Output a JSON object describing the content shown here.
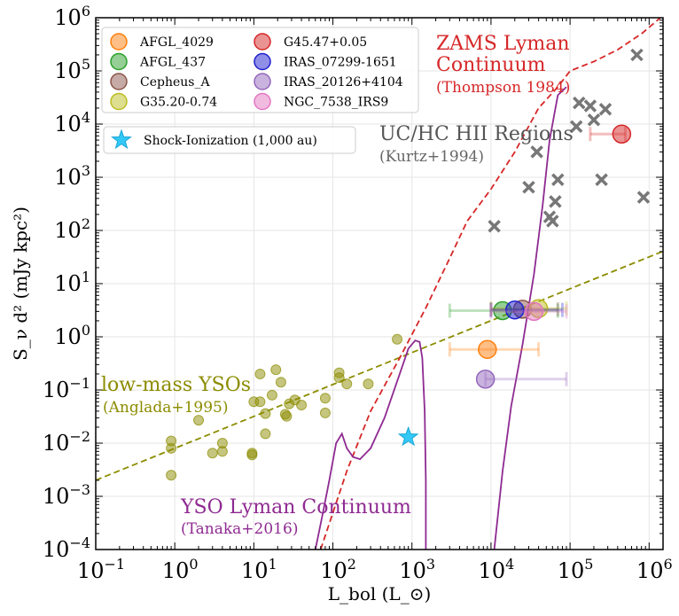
{
  "chart_data": {
    "type": "scatter",
    "x_scale": "log",
    "y_scale": "log",
    "xlim": [
      0.1,
      1500000
    ],
    "ylim": [
      0.0001,
      1000000
    ],
    "xlabel": "L_bol (L_⊙)",
    "ylabel": "S_ν d² (mJy kpc²)",
    "x_ticks": [
      0.1,
      1,
      10,
      100,
      1000,
      10000,
      100000,
      1000000
    ],
    "y_ticks": [
      0.0001,
      0.001,
      0.01,
      0.1,
      1,
      10,
      100,
      1000,
      10000,
      100000,
      1000000
    ],
    "grid": true,
    "legend_position": "top-left",
    "legend": {
      "sources": [
        {
          "name": "AFGL_4029",
          "color": "#ff7f0e"
        },
        {
          "name": "G45.47+0.05",
          "color": "#d62728"
        },
        {
          "name": "AFGL_437",
          "color": "#2ca02c"
        },
        {
          "name": "IRAS_07299-1651",
          "color": "#1f1fcf"
        },
        {
          "name": "Cepheus_A",
          "color": "#8c564b"
        },
        {
          "name": "IRAS_20126+4104",
          "color": "#9467bd"
        },
        {
          "name": "G35.20-0.74",
          "color": "#bcbd22"
        },
        {
          "name": "NGC_7538_IRS9",
          "color": "#e377c2"
        }
      ],
      "shock_label": "Shock-Ionization (1,000 au)"
    },
    "annotations": {
      "zams_title": "ZAMS Lyman",
      "zams_title2": "Continuum",
      "zams_ref": "(Thompson 1984)",
      "hii_title": "UC/HC HII Regions",
      "hii_ref": "(Kurtz+1994)",
      "lowmass_title": "low-mass YSOs",
      "lowmass_ref": "(Anglada+1995)",
      "yso_title": "YSO Lyman Continuum",
      "yso_ref": "(Tanaka+2016)"
    },
    "colors": {
      "zams": "#d62728",
      "hii": "#555555",
      "lowmass": "#8c8c00",
      "yso": "#8e2a91",
      "shock": "#33c8f5"
    },
    "source_points": [
      {
        "name": "AFGL_4029",
        "L": 9000,
        "S": 0.58,
        "Lerr": [
          3000,
          40000
        ]
      },
      {
        "name": "AFGL_437",
        "L": 14000,
        "S": 3.1,
        "Lerr": [
          3000,
          70000
        ]
      },
      {
        "name": "Cepheus_A",
        "L": 25000,
        "S": 3.3,
        "Lerr": [
          10000,
          70000
        ]
      },
      {
        "name": "G35.20-0.74",
        "L": 40000,
        "S": 3.4,
        "Lerr": [
          10000,
          90000
        ]
      },
      {
        "name": "G45.47+0.05",
        "L": 450000,
        "S": 6500,
        "Lerr": [
          180000,
          500000
        ]
      },
      {
        "name": "IRAS_07299-1651",
        "L": 20000,
        "S": 3.2,
        "Lerr": [
          10000,
          80000
        ]
      },
      {
        "name": "IRAS_20126+4104",
        "L": 8500,
        "S": 0.16,
        "Lerr": [
          8500,
          90000
        ]
      },
      {
        "name": "NGC_7538_IRS9",
        "L": 35000,
        "S": 3.0,
        "Lerr": [
          10000,
          90000
        ]
      }
    ],
    "hii_regions": [
      {
        "L": 11000,
        "S": 120
      },
      {
        "L": 30000,
        "S": 650
      },
      {
        "L": 38000,
        "S": 3000
      },
      {
        "L": 55000,
        "S": 180
      },
      {
        "L": 60000,
        "S": 150
      },
      {
        "L": 65000,
        "S": 350
      },
      {
        "L": 70000,
        "S": 900
      },
      {
        "L": 120000,
        "S": 9000
      },
      {
        "L": 130000,
        "S": 25000
      },
      {
        "L": 180000,
        "S": 22000
      },
      {
        "L": 200000,
        "S": 12000
      },
      {
        "L": 250000,
        "S": 900
      },
      {
        "L": 280000,
        "S": 19000
      },
      {
        "L": 700000,
        "S": 200000
      },
      {
        "L": 850000,
        "S": 420
      }
    ],
    "lowmass_ysos": [
      {
        "L": 0.9,
        "S": 0.011
      },
      {
        "L": 0.9,
        "S": 0.008
      },
      {
        "L": 0.9,
        "S": 0.0025
      },
      {
        "L": 2,
        "S": 0.027
      },
      {
        "L": 3,
        "S": 0.0065
      },
      {
        "L": 4,
        "S": 0.01
      },
      {
        "L": 4,
        "S": 0.007
      },
      {
        "L": 9.5,
        "S": 0.0065
      },
      {
        "L": 9.5,
        "S": 0.006
      },
      {
        "L": 10,
        "S": 0.06
      },
      {
        "L": 12,
        "S": 0.2
      },
      {
        "L": 12,
        "S": 0.06
      },
      {
        "L": 14,
        "S": 0.036
      },
      {
        "L": 14,
        "S": 0.015
      },
      {
        "L": 17,
        "S": 0.08
      },
      {
        "L": 19,
        "S": 0.24
      },
      {
        "L": 22,
        "S": 0.14
      },
      {
        "L": 25,
        "S": 0.035
      },
      {
        "L": 26,
        "S": 0.032
      },
      {
        "L": 28,
        "S": 0.055
      },
      {
        "L": 33,
        "S": 0.065
      },
      {
        "L": 40,
        "S": 0.052
      },
      {
        "L": 80,
        "S": 0.07
      },
      {
        "L": 80,
        "S": 0.037
      },
      {
        "L": 120,
        "S": 0.21
      },
      {
        "L": 120,
        "S": 0.17
      },
      {
        "L": 150,
        "S": 0.13
      },
      {
        "L": 280,
        "S": 0.13
      },
      {
        "L": 650,
        "S": 0.9
      }
    ],
    "shock_point": {
      "L": 900,
      "S": 0.013
    },
    "lowmass_line": {
      "slope": 0.6,
      "intercept": 0.008
    },
    "zams_curve": [
      [
        70,
        0.0001
      ],
      [
        150,
        0.003
      ],
      [
        300,
        0.04
      ],
      [
        700,
        0.4
      ],
      [
        1500,
        3.5
      ],
      [
        3000,
        30
      ],
      [
        5000,
        150
      ],
      [
        10000,
        600
      ],
      [
        20000,
        3000
      ],
      [
        40000,
        20000
      ],
      [
        70000,
        50000
      ],
      [
        100000,
        100000
      ],
      [
        200000,
        150000
      ],
      [
        400000,
        250000
      ],
      [
        800000,
        500000
      ],
      [
        1500000,
        1100000
      ]
    ],
    "yso_curve": [
      [
        60,
        0.0001
      ],
      [
        75,
        0.0005
      ],
      [
        90,
        0.002
      ],
      [
        110,
        0.01
      ],
      [
        130,
        0.015
      ],
      [
        150,
        0.008
      ],
      [
        180,
        0.0055
      ],
      [
        220,
        0.005
      ],
      [
        300,
        0.008
      ],
      [
        450,
        0.03
      ],
      [
        700,
        0.2
      ],
      [
        900,
        0.6
      ],
      [
        1100,
        0.85
      ],
      [
        1250,
        0.8
      ],
      [
        1350,
        0.4
      ],
      [
        1450,
        0.04
      ],
      [
        1500,
        0.002
      ],
      [
        1500,
        0.0001
      ]
    ],
    "yso_curve2": [
      [
        11000,
        0.0001
      ],
      [
        14000,
        0.003
      ],
      [
        18000,
        0.05
      ],
      [
        25000,
        0.7
      ],
      [
        35000,
        15
      ],
      [
        45000,
        300
      ],
      [
        55000,
        5000
      ],
      [
        70000,
        35000
      ],
      [
        90000,
        50000
      ]
    ]
  }
}
